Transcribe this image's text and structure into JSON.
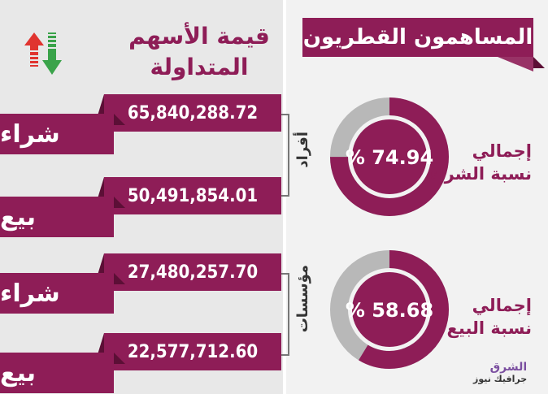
{
  "title": "المساهمون القطريون",
  "header": {
    "line1": "قيمة الأسهم",
    "line2": "المتداولة"
  },
  "groups": [
    {
      "label": "أفراد",
      "rows": [
        {
          "type": "شراء",
          "value": "65,840,288.72"
        },
        {
          "type": "بيع",
          "value": "50,491,854.01"
        }
      ]
    },
    {
      "label": "مؤسسات",
      "rows": [
        {
          "type": "شراء",
          "value": "27,480,257.70"
        },
        {
          "type": "بيع",
          "value": "22,577,712.60"
        }
      ]
    }
  ],
  "donuts": [
    {
      "line1": "إجمالي",
      "line2": "نسبة الشراء",
      "text": "% 74.94",
      "percent": 74.94
    },
    {
      "line1": "إجمالي",
      "line2": "نسبة البيع",
      "text": "% 58.68",
      "percent": 58.68
    }
  ],
  "logo": {
    "main": "الشرق",
    "sub": "جرافيك نيوز"
  },
  "colors": {
    "primary": "#8e1d57",
    "gray": "#b8b8b8",
    "up": "#e0342f",
    "down": "#3aa34a"
  }
}
